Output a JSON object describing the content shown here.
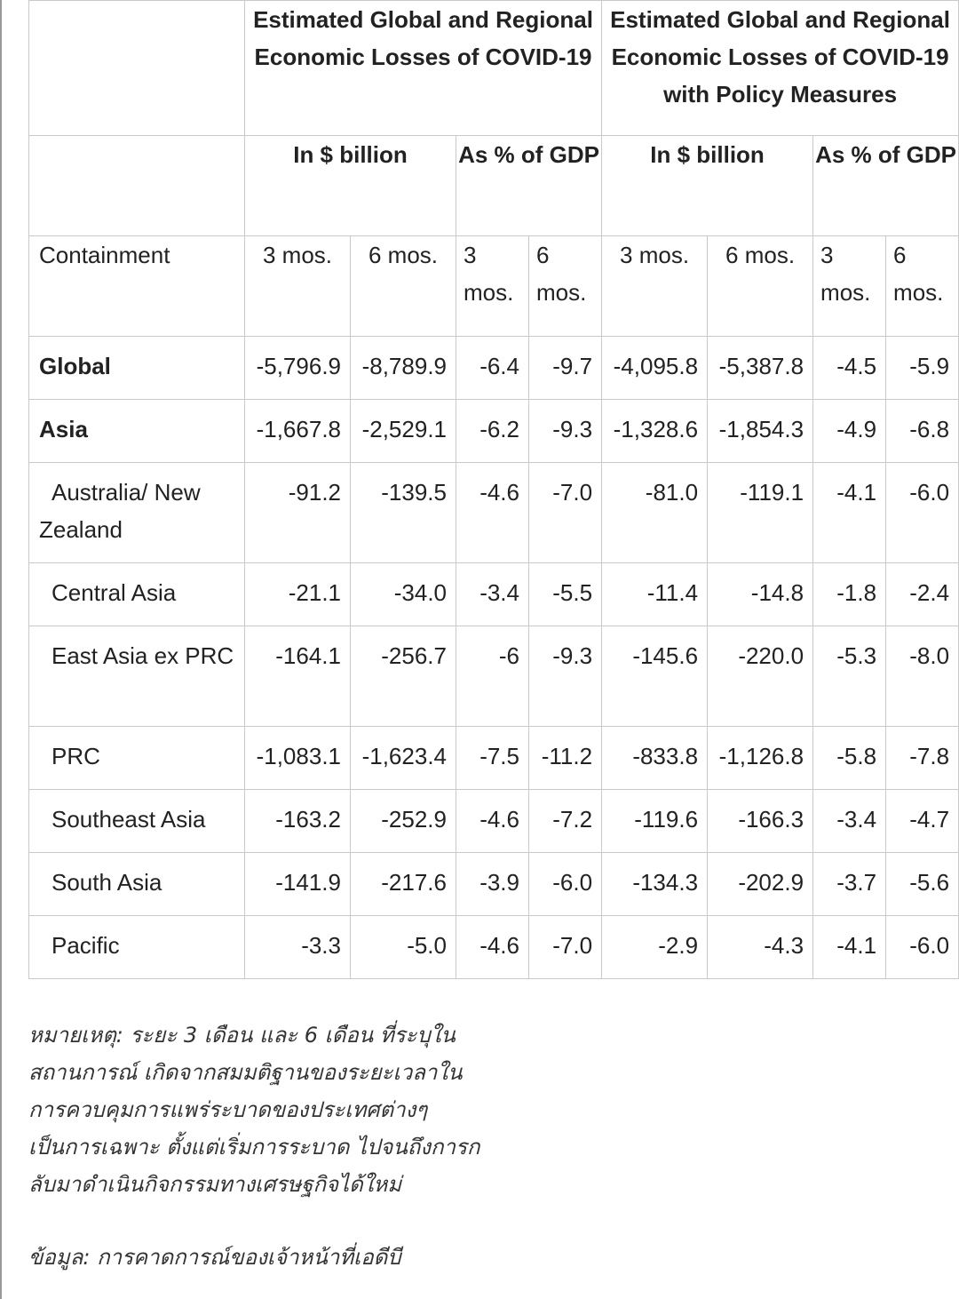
{
  "table": {
    "group_headers": [
      "Estimated Global and Regional Economic Losses of COVID-19",
      "Estimated Global and Regional Economic Losses of COVID-19 with Policy Measures"
    ],
    "sub_headers": [
      "In $ billion",
      "As % of GDP",
      "In $ billion",
      "As % of GDP"
    ],
    "containment_label": "Containment",
    "periods": [
      "3 mos.",
      "6 mos.",
      "3 mos.",
      "6 mos.",
      "3 mos.",
      "6 mos.",
      "3 mos.",
      "6 mos."
    ],
    "rows": [
      {
        "label": "Global",
        "values": [
          "-5,796.9",
          "-8,789.9",
          "-6.4",
          "-9.7",
          "-4,095.8",
          "-5,387.8",
          "-4.5",
          "-5.9"
        ]
      },
      {
        "label": "Asia",
        "values": [
          "-1,667.8",
          "-2,529.1",
          "-6.2",
          "-9.3",
          "-1,328.6",
          "-1,854.3",
          "-4.9",
          "-6.8"
        ]
      },
      {
        "label": "Australia/ New Zealand",
        "values": [
          "-91.2",
          "-139.5",
          "-4.6",
          "-7.0",
          "-81.0",
          "-119.1",
          "-4.1",
          "-6.0"
        ]
      },
      {
        "label": "Central Asia",
        "values": [
          "-21.1",
          "-34.0",
          "-3.4",
          "-5.5",
          "-11.4",
          "-14.8",
          "-1.8",
          "-2.4"
        ]
      },
      {
        "label": "East Asia ex PRC",
        "values": [
          "-164.1",
          "-256.7",
          "-6",
          "-9.3",
          "-145.6",
          "-220.0",
          "-5.3",
          "-8.0"
        ]
      },
      {
        "label": "PRC",
        "values": [
          "-1,083.1",
          "-1,623.4",
          "-7.5",
          "-11.2",
          "-833.8",
          "-1,126.8",
          "-5.8",
          "-7.8"
        ]
      },
      {
        "label": "Southeast Asia",
        "values": [
          "-163.2",
          "-252.9",
          "-4.6",
          "-7.2",
          "-119.6",
          "-166.3",
          "-3.4",
          "-4.7"
        ]
      },
      {
        "label": "South Asia",
        "values": [
          "-141.9",
          "-217.6",
          "-3.9",
          "-6.0",
          "-134.3",
          "-202.9",
          "-3.7",
          "-5.6"
        ]
      },
      {
        "label": "Pacific",
        "values": [
          "-3.3",
          "-5.0",
          "-4.6",
          "-7.0",
          "-2.9",
          "-4.3",
          "-4.1",
          "-6.0"
        ]
      }
    ]
  },
  "note": {
    "lines": [
      "หมายเหตุ: ระยะ 3 เดือน และ 6 เดือน ที่ระบุใน",
      "สถานการณ์ เกิดจากสมมติฐานของระยะเวลาใน",
      "การควบคุมการแพร่ระบาดของประเทศต่างๆ",
      "เป็นการเฉพาะ ตั้งแต่เริ่มการระบาด ไปจนถึงการก",
      "ลับมาดำเนินกิจกรรมทางเศรษฐกิจได้ใหม่"
    ]
  },
  "source": "ข้อมูล: การคาดการณ์ของเจ้าหน้าที่เอดีบี"
}
